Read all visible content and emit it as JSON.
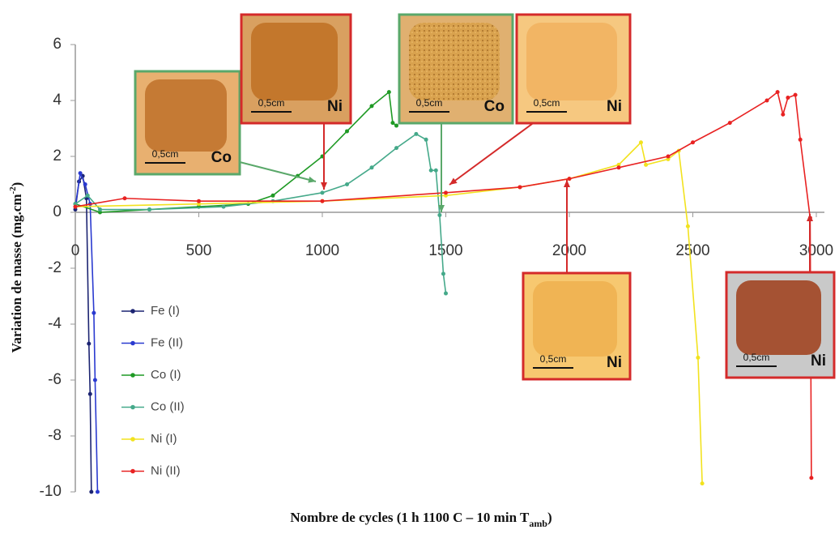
{
  "chart_data": {
    "type": "line",
    "x_label": "Nombre de cycles (1 h 1100 C – 10 min T",
    "x_label_sub": "amb",
    "x_label_end": ")",
    "y_label": "Variation de masse (mg.cm",
    "y_label_sup": "-2",
    "y_label_end": ")",
    "xlim": [
      0,
      3000
    ],
    "xticks": [
      0,
      500,
      1000,
      1500,
      2000,
      2500,
      3000
    ],
    "ylim": [
      -10,
      6
    ],
    "yticks": [
      -10,
      -8,
      -6,
      -4,
      -2,
      0,
      2,
      4,
      6
    ],
    "grid": false,
    "legend": "lower left",
    "series": [
      {
        "name": "Fe (I)",
        "color": "#1c2472",
        "x": [
          0,
          15,
          30,
          45,
          55,
          60,
          65
        ],
        "values": [
          0.1,
          1.1,
          1.3,
          0.5,
          -4.7,
          -6.5,
          -10
        ]
      },
      {
        "name": "Fe (II)",
        "color": "#2a3ad0",
        "x": [
          0,
          20,
          40,
          60,
          75,
          80,
          90
        ],
        "values": [
          0.2,
          1.4,
          1.0,
          0.3,
          -3.6,
          -6,
          -10
        ]
      },
      {
        "name": "Co (I)",
        "color": "#1f9a25",
        "x": [
          0,
          100,
          300,
          500,
          700,
          800,
          900,
          1000,
          1100,
          1200,
          1270,
          1285,
          1300
        ],
        "values": [
          0.3,
          0.0,
          0.1,
          0.2,
          0.3,
          0.6,
          1.3,
          2.0,
          2.9,
          3.8,
          4.3,
          3.2,
          3.1
        ]
      },
      {
        "name": "Co (II)",
        "color": "#45a98a",
        "x": [
          0,
          50,
          100,
          300,
          600,
          800,
          1000,
          1100,
          1200,
          1300,
          1380,
          1420,
          1440,
          1460,
          1475,
          1490,
          1500
        ],
        "values": [
          0.3,
          0.6,
          0.1,
          0.1,
          0.2,
          0.4,
          0.7,
          1.0,
          1.6,
          2.3,
          2.8,
          2.6,
          1.5,
          1.5,
          -0.1,
          -2.2,
          -2.9
        ]
      },
      {
        "name": "Ni (I)",
        "color": "#f2e21e",
        "x": [
          0,
          500,
          1000,
          1500,
          1800,
          2000,
          2200,
          2290,
          2310,
          2400,
          2443,
          2480,
          2521,
          2538
        ],
        "values": [
          0.2,
          0.3,
          0.4,
          0.6,
          0.9,
          1.2,
          1.7,
          2.5,
          1.7,
          1.9,
          2.2,
          -0.5,
          -5.2,
          -9.7
        ]
      },
      {
        "name": "Ni (II)",
        "color": "#e82222",
        "x": [
          0,
          200,
          500,
          1000,
          1500,
          1800,
          2000,
          2200,
          2400,
          2500,
          2650,
          2800,
          2843,
          2865,
          2885,
          2915,
          2935,
          2975,
          2980
        ],
        "values": [
          0.2,
          0.5,
          0.4,
          0.4,
          0.7,
          0.9,
          1.2,
          1.6,
          2.0,
          2.5,
          3.2,
          4.0,
          4.3,
          3.5,
          4.1,
          4.2,
          2.6,
          -0.2,
          -9.5
        ]
      }
    ],
    "annotations": [
      {
        "scale": "0,5cm",
        "label": "Co",
        "color": "#5aa86a"
      },
      {
        "scale": "0,5cm",
        "label": "Ni",
        "color": "#d42a2a"
      },
      {
        "scale": "0,5cm",
        "label": "Co",
        "color": "#5aa86a"
      },
      {
        "scale": "0,5cm",
        "label": "Ni",
        "color": "#d42a2a"
      },
      {
        "scale": "0,5cm",
        "label": "Ni",
        "color": "#d42a2a"
      },
      {
        "scale": "0,5cm",
        "label": "Ni",
        "color": "#d42a2a"
      }
    ]
  }
}
